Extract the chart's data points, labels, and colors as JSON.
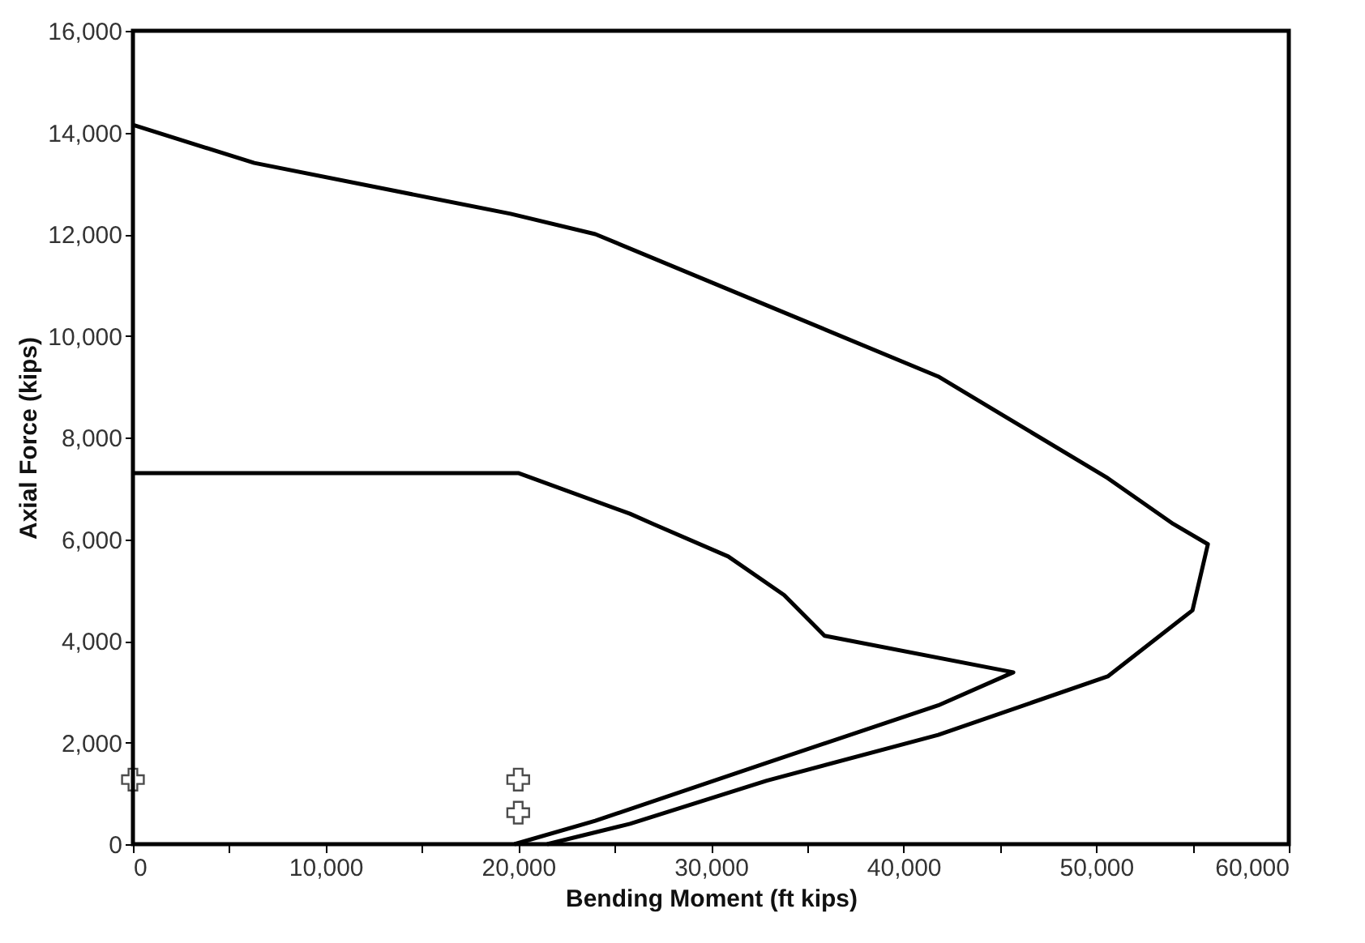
{
  "chart_data": {
    "type": "line",
    "xlabel": "Bending Moment (ft kips)",
    "ylabel": "Axial Force (kips)",
    "xlim": [
      0,
      60000
    ],
    "ylim": [
      0,
      16000
    ],
    "xticks": [
      {
        "value": 0,
        "label": "0"
      },
      {
        "value": 5000,
        "label": null
      },
      {
        "value": 10000,
        "label": "10,000"
      },
      {
        "value": 15000,
        "label": null
      },
      {
        "value": 20000,
        "label": "20,000"
      },
      {
        "value": 25000,
        "label": null
      },
      {
        "value": 30000,
        "label": "30,000"
      },
      {
        "value": 35000,
        "label": null
      },
      {
        "value": 40000,
        "label": "40,000"
      },
      {
        "value": 45000,
        "label": null
      },
      {
        "value": 50000,
        "label": "50,000"
      },
      {
        "value": 55000,
        "label": null
      },
      {
        "value": 60000,
        "label": "60,000"
      }
    ],
    "yticks": [
      {
        "value": 0,
        "label": "0"
      },
      {
        "value": 2000,
        "label": "2,000"
      },
      {
        "value": 4000,
        "label": "4,000"
      },
      {
        "value": 6000,
        "label": "6,000"
      },
      {
        "value": 8000,
        "label": "8,000"
      },
      {
        "value": 10000,
        "label": "10,000"
      },
      {
        "value": 12000,
        "label": "12,000"
      },
      {
        "value": 14000,
        "label": "14,000"
      },
      {
        "value": 16000,
        "label": "16,000"
      }
    ],
    "grid": false,
    "line_style": "solid",
    "series": [
      {
        "color": "#000000",
        "marker": "none",
        "x": [
          0,
          6300,
          19600,
          24000,
          32900,
          41800,
          50600,
          54000,
          55800,
          55000,
          50600,
          41800,
          32900,
          25800,
          21500
        ],
        "values": [
          14150,
          13400,
          12400,
          12000,
          10600,
          9200,
          7200,
          6300,
          5900,
          4600,
          3300,
          2150,
          1250,
          400,
          0
        ]
      },
      {
        "color": "#000000",
        "marker": "none",
        "x": [
          0,
          20000,
          25800,
          27000,
          30900,
          33800,
          35900,
          45700,
          41800,
          32900,
          24000,
          19800
        ],
        "values": [
          7300,
          7300,
          6500,
          6300,
          5660,
          4900,
          4100,
          3380,
          2730,
          1600,
          460,
          0
        ]
      },
      {
        "type": "scatter",
        "color": "#000000",
        "marker": "cross",
        "x": [
          0,
          20000,
          20000
        ],
        "values": [
          1270,
          1270,
          620
        ]
      }
    ]
  }
}
